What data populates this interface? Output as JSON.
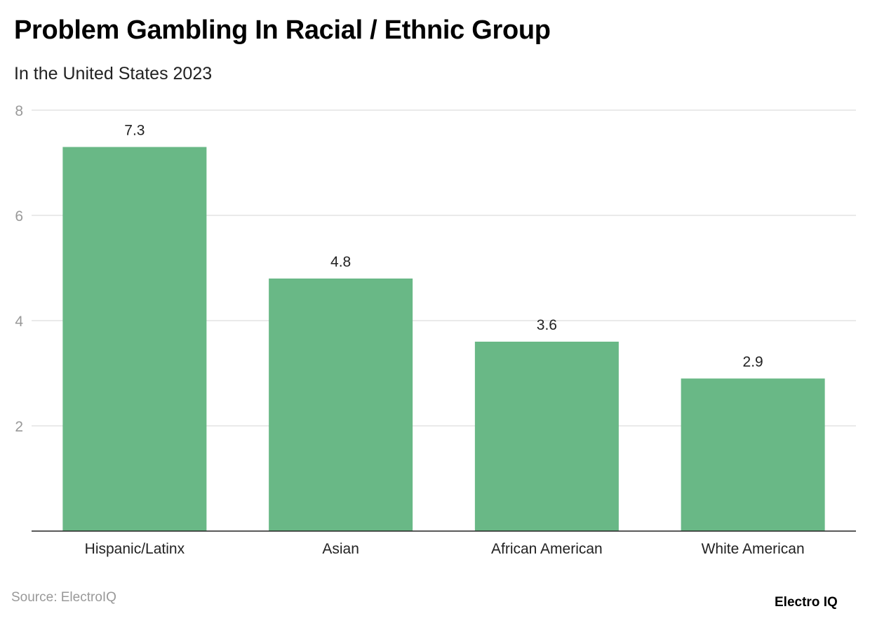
{
  "title": "Problem Gambling In Racial / Ethnic Group",
  "subtitle": "In the United States 2023",
  "source": "Source: ElectroIQ",
  "logo": "Electro IQ",
  "colors": {
    "bar": "#69b886",
    "grid": "#e3e3e3",
    "axis": "#222222",
    "tick_label": "#999999"
  },
  "chart_data": {
    "type": "bar",
    "title": "Problem Gambling In Racial / Ethnic Group",
    "subtitle": "In the United States 2023",
    "categories": [
      "Hispanic/Latinx",
      "Asian",
      "African American",
      "White American"
    ],
    "values": [
      7.3,
      4.8,
      3.6,
      2.9
    ],
    "value_labels": [
      "7.3",
      "4.8",
      "3.6",
      "2.9"
    ],
    "xlabel": "",
    "ylabel": "",
    "ylim": [
      0,
      8
    ],
    "yticks": [
      2,
      4,
      6,
      8
    ],
    "ytick_labels": [
      "2",
      "4",
      "6",
      "8"
    ],
    "grid": true,
    "legend": "none"
  }
}
